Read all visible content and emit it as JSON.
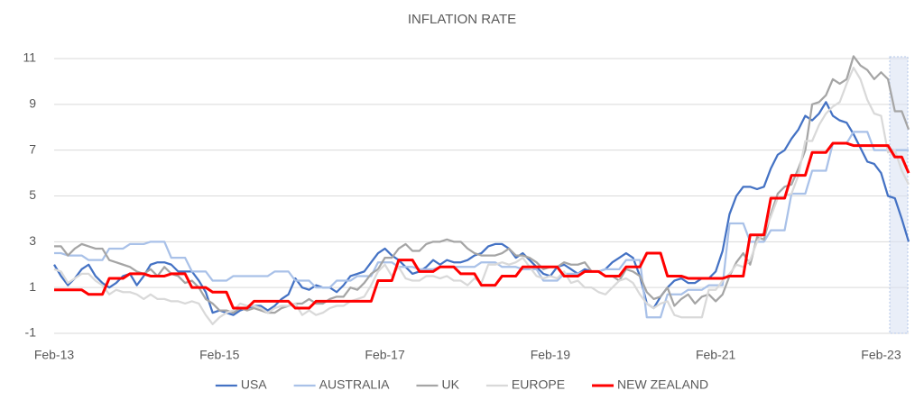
{
  "chart_data": {
    "type": "line",
    "title": "INFLATION RATE",
    "categories": [
      "Feb-13",
      null,
      null,
      null,
      null,
      null,
      null,
      null,
      null,
      null,
      null,
      null,
      null,
      null,
      null,
      null,
      null,
      null,
      null,
      null,
      null,
      null,
      null,
      null,
      "Feb-15",
      null,
      null,
      null,
      null,
      null,
      null,
      null,
      null,
      null,
      null,
      null,
      null,
      null,
      null,
      null,
      null,
      null,
      null,
      null,
      null,
      null,
      null,
      null,
      "Feb-17",
      null,
      null,
      null,
      null,
      null,
      null,
      null,
      null,
      null,
      null,
      null,
      null,
      null,
      null,
      null,
      null,
      null,
      null,
      null,
      null,
      null,
      null,
      null,
      "Feb-19",
      null,
      null,
      null,
      null,
      null,
      null,
      null,
      null,
      null,
      null,
      null,
      null,
      null,
      null,
      null,
      null,
      null,
      null,
      null,
      null,
      null,
      null,
      null,
      "Feb-21",
      null,
      null,
      null,
      null,
      null,
      null,
      null,
      null,
      null,
      null,
      null,
      null,
      null,
      null,
      null,
      null,
      null,
      null,
      null,
      null,
      null,
      null,
      null,
      "Feb-23",
      null,
      null,
      null,
      null
    ],
    "ylim": [
      -1,
      11
    ],
    "yticks": [
      -1,
      1,
      3,
      5,
      7,
      9,
      11
    ],
    "grid": true,
    "legend": "bottom",
    "series": [
      {
        "name": "USA",
        "color": "#4472c4",
        "values": [
          2.0,
          1.5,
          1.1,
          1.4,
          1.8,
          2.0,
          1.5,
          1.2,
          1.0,
          1.2,
          1.5,
          1.6,
          1.1,
          1.5,
          2.0,
          2.1,
          2.1,
          2.0,
          1.7,
          1.7,
          1.7,
          1.3,
          0.8,
          -0.1,
          0.0,
          -0.1,
          -0.2,
          0.0,
          0.1,
          0.2,
          0.2,
          0.0,
          0.2,
          0.5,
          0.7,
          1.4,
          1.0,
          0.9,
          1.1,
          1.0,
          1.0,
          0.8,
          1.1,
          1.5,
          1.6,
          1.7,
          2.1,
          2.5,
          2.7,
          2.4,
          2.2,
          1.9,
          1.6,
          1.7,
          1.9,
          2.2,
          2.0,
          2.2,
          2.1,
          2.1,
          2.2,
          2.4,
          2.5,
          2.8,
          2.9,
          2.9,
          2.7,
          2.3,
          2.5,
          2.2,
          1.9,
          1.6,
          1.5,
          1.9,
          2.0,
          1.8,
          1.6,
          1.8,
          1.7,
          1.7,
          1.8,
          2.1,
          2.3,
          2.5,
          2.3,
          1.5,
          0.3,
          0.1,
          0.6,
          1.0,
          1.3,
          1.4,
          1.2,
          1.2,
          1.4,
          1.4,
          1.7,
          2.6,
          4.2,
          5.0,
          5.4,
          5.4,
          5.3,
          5.4,
          6.2,
          6.8,
          7.0,
          7.5,
          7.9,
          8.5,
          8.3,
          8.6,
          9.1,
          8.5,
          8.3,
          8.2,
          7.7,
          7.1,
          6.5,
          6.4,
          6.0,
          5.0,
          4.9,
          4.0,
          3.0
        ]
      },
      {
        "name": "AUSTRALIA",
        "color": "#a9c1e8",
        "values": [
          2.5,
          2.5,
          2.4,
          2.4,
          2.4,
          2.2,
          2.2,
          2.2,
          2.7,
          2.7,
          2.7,
          2.9,
          2.9,
          2.9,
          3.0,
          3.0,
          3.0,
          2.3,
          2.3,
          2.3,
          1.7,
          1.7,
          1.7,
          1.3,
          1.3,
          1.3,
          1.5,
          1.5,
          1.5,
          1.5,
          1.5,
          1.5,
          1.7,
          1.7,
          1.7,
          1.3,
          1.3,
          1.3,
          1.0,
          1.0,
          1.0,
          1.3,
          1.3,
          1.3,
          1.5,
          1.5,
          1.5,
          2.1,
          2.1,
          2.1,
          1.9,
          1.9,
          1.9,
          1.8,
          1.8,
          1.8,
          1.9,
          1.9,
          1.9,
          1.9,
          1.9,
          1.9,
          2.1,
          2.1,
          2.1,
          1.9,
          1.9,
          1.9,
          1.8,
          1.8,
          1.8,
          1.3,
          1.3,
          1.3,
          1.6,
          1.6,
          1.6,
          1.7,
          1.7,
          1.7,
          1.8,
          1.8,
          1.8,
          2.2,
          2.2,
          2.2,
          -0.3,
          -0.3,
          -0.3,
          0.7,
          0.7,
          0.7,
          0.9,
          0.9,
          0.9,
          1.1,
          1.1,
          1.1,
          3.8,
          3.8,
          3.8,
          3.0,
          3.0,
          3.0,
          3.5,
          3.5,
          3.5,
          5.1,
          5.1,
          5.1,
          6.1,
          6.1,
          6.1,
          7.3,
          7.3,
          7.3,
          7.8,
          7.8,
          7.8,
          7.0,
          7.0,
          7.0,
          7.0,
          7.0,
          7.0
        ]
      },
      {
        "name": "UK",
        "color": "#a5a5a5",
        "values": [
          2.8,
          2.8,
          2.4,
          2.7,
          2.9,
          2.8,
          2.7,
          2.7,
          2.2,
          2.1,
          2.0,
          1.9,
          1.7,
          1.6,
          1.8,
          1.5,
          1.9,
          1.6,
          1.5,
          1.2,
          1.3,
          1.0,
          0.5,
          0.3,
          0.0,
          0.0,
          -0.1,
          0.1,
          0.0,
          0.1,
          0.0,
          -0.1,
          -0.1,
          0.1,
          0.2,
          0.3,
          0.3,
          0.5,
          0.3,
          0.3,
          0.5,
          0.6,
          0.6,
          1.0,
          0.9,
          1.2,
          1.6,
          1.8,
          2.3,
          2.3,
          2.7,
          2.9,
          2.6,
          2.6,
          2.9,
          3.0,
          3.0,
          3.1,
          3.0,
          3.0,
          2.7,
          2.5,
          2.4,
          2.4,
          2.4,
          2.5,
          2.7,
          2.4,
          2.4,
          2.3,
          2.1,
          1.8,
          1.9,
          1.9,
          2.1,
          2.0,
          2.0,
          2.1,
          1.7,
          1.7,
          1.5,
          1.5,
          1.3,
          1.8,
          1.7,
          1.5,
          0.8,
          0.5,
          0.6,
          1.0,
          0.2,
          0.5,
          0.7,
          0.3,
          0.6,
          0.7,
          0.4,
          0.7,
          1.5,
          2.1,
          2.5,
          2.0,
          3.2,
          3.1,
          4.2,
          5.1,
          5.4,
          5.5,
          6.2,
          7.0,
          9.0,
          9.1,
          9.4,
          10.1,
          9.9,
          10.1,
          11.1,
          10.7,
          10.5,
          10.1,
          10.4,
          10.1,
          8.7,
          8.7,
          7.9
        ]
      },
      {
        "name": "EUROPE",
        "color": "#d9d9d9",
        "values": [
          1.8,
          1.7,
          1.2,
          1.4,
          1.6,
          1.6,
          1.3,
          1.1,
          0.7,
          0.9,
          0.8,
          0.8,
          0.7,
          0.5,
          0.7,
          0.5,
          0.5,
          0.4,
          0.4,
          0.3,
          0.4,
          0.3,
          -0.2,
          -0.6,
          -0.3,
          -0.1,
          0.0,
          0.3,
          0.2,
          0.2,
          0.1,
          -0.1,
          0.1,
          0.2,
          0.2,
          0.3,
          -0.2,
          0.0,
          -0.2,
          -0.1,
          0.1,
          0.2,
          0.2,
          0.4,
          0.5,
          0.6,
          1.1,
          1.7,
          2.0,
          1.5,
          1.9,
          1.4,
          1.3,
          1.3,
          1.5,
          1.5,
          1.4,
          1.5,
          1.3,
          1.3,
          1.1,
          1.4,
          1.2,
          2.0,
          2.0,
          2.1,
          2.0,
          2.1,
          2.3,
          1.9,
          1.5,
          1.4,
          1.5,
          1.4,
          1.7,
          1.2,
          1.3,
          1.0,
          1.0,
          0.8,
          0.7,
          1.0,
          1.3,
          1.4,
          1.2,
          0.7,
          0.3,
          0.1,
          0.3,
          0.4,
          -0.2,
          -0.3,
          -0.3,
          -0.3,
          -0.3,
          0.9,
          0.9,
          1.3,
          1.6,
          2.0,
          1.9,
          2.2,
          3.0,
          3.4,
          4.1,
          4.9,
          5.0,
          5.1,
          5.9,
          7.4,
          7.4,
          8.1,
          8.6,
          8.9,
          9.1,
          9.9,
          10.6,
          10.1,
          9.2,
          8.6,
          8.5,
          6.9,
          7.0,
          6.1,
          5.5
        ]
      },
      {
        "name": "NEW ZEALAND",
        "color": "#ff0000",
        "values": [
          0.9,
          0.9,
          0.9,
          0.9,
          0.9,
          0.7,
          0.7,
          0.7,
          1.4,
          1.4,
          1.4,
          1.6,
          1.6,
          1.6,
          1.5,
          1.5,
          1.5,
          1.6,
          1.6,
          1.6,
          1.0,
          1.0,
          1.0,
          0.8,
          0.8,
          0.8,
          0.1,
          0.1,
          0.1,
          0.4,
          0.4,
          0.4,
          0.4,
          0.4,
          0.4,
          0.1,
          0.1,
          0.1,
          0.4,
          0.4,
          0.4,
          0.4,
          0.4,
          0.4,
          0.4,
          0.4,
          0.4,
          1.3,
          1.3,
          1.3,
          2.2,
          2.2,
          2.2,
          1.7,
          1.7,
          1.7,
          1.9,
          1.9,
          1.9,
          1.6,
          1.6,
          1.6,
          1.1,
          1.1,
          1.1,
          1.5,
          1.5,
          1.5,
          1.9,
          1.9,
          1.9,
          1.9,
          1.9,
          1.9,
          1.5,
          1.5,
          1.5,
          1.7,
          1.7,
          1.7,
          1.5,
          1.5,
          1.5,
          1.9,
          1.9,
          1.9,
          2.5,
          2.5,
          2.5,
          1.5,
          1.5,
          1.5,
          1.4,
          1.4,
          1.4,
          1.4,
          1.4,
          1.4,
          1.5,
          1.5,
          1.5,
          3.3,
          3.3,
          3.3,
          4.9,
          4.9,
          4.9,
          5.9,
          5.9,
          5.9,
          6.9,
          6.9,
          6.9,
          7.3,
          7.3,
          7.3,
          7.2,
          7.2,
          7.2,
          7.2,
          7.2,
          7.2,
          6.7,
          6.7,
          6.0
        ]
      }
    ]
  }
}
